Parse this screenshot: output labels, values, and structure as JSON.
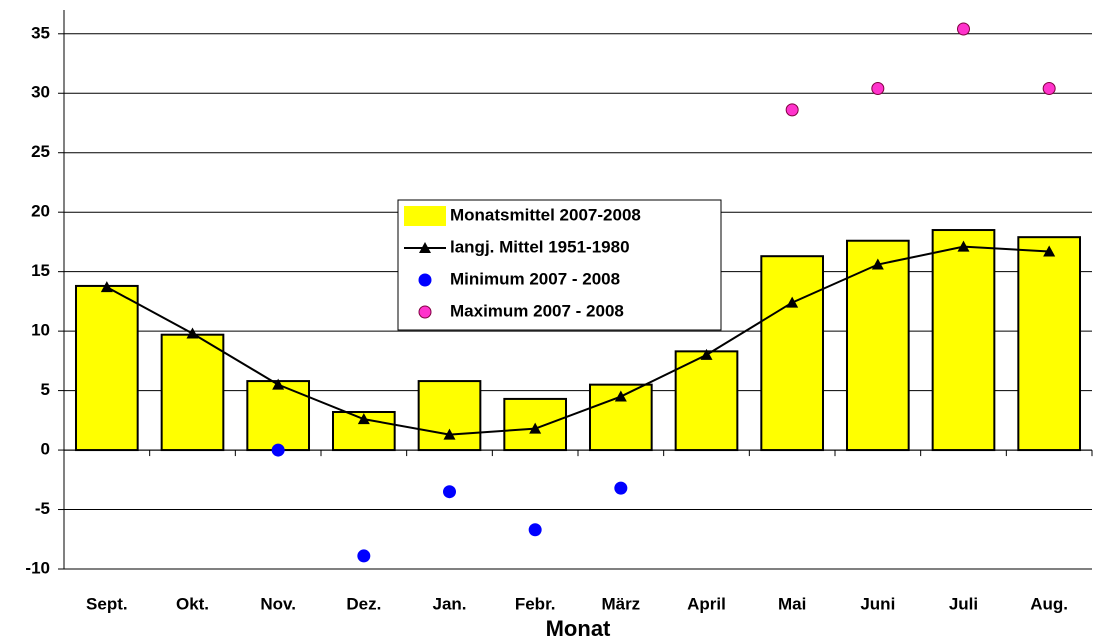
{
  "chart_data": {
    "type": "bar",
    "x_label": "Monat",
    "categories": [
      "Sept.",
      "Okt.",
      "Nov.",
      "Dez.",
      "Jan.",
      "Febr.",
      "März",
      "April",
      "Mai",
      "Juni",
      "Juli",
      "Aug."
    ],
    "series": [
      {
        "name": "Monatsmittel 2007-2008",
        "type": "bar",
        "color": "#ffff00",
        "values": [
          13.8,
          9.7,
          5.8,
          3.2,
          5.8,
          4.3,
          5.5,
          8.3,
          16.3,
          17.6,
          18.5,
          17.9
        ]
      },
      {
        "name": "langj. Mittel 1951-1980",
        "type": "line",
        "color": "#000000",
        "values": [
          13.7,
          9.8,
          5.5,
          2.6,
          1.3,
          1.8,
          4.5,
          8.0,
          12.4,
          15.6,
          17.1,
          16.7
        ]
      },
      {
        "name": "Minimum 2007 - 2008",
        "type": "scatter",
        "color": "#0000ff",
        "values": [
          null,
          null,
          0,
          -8.9,
          -3.5,
          -6.7,
          -3.2,
          null,
          null,
          null,
          null,
          null
        ]
      },
      {
        "name": "Maximum 2007 - 2008",
        "type": "scatter",
        "color": "#ff33cc",
        "values": [
          null,
          null,
          null,
          null,
          null,
          null,
          null,
          null,
          28.6,
          30.4,
          35.4,
          30.4
        ]
      }
    ],
    "ylim": [
      -10,
      37
    ],
    "yticks": [
      -10,
      -5,
      0,
      5,
      10,
      15,
      20,
      25,
      30,
      35
    ],
    "grid": true
  }
}
